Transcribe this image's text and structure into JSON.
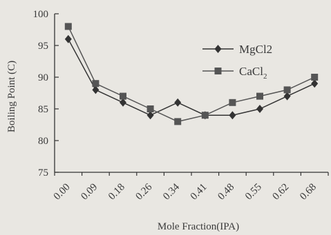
{
  "chart_data": {
    "type": "line",
    "categories": [
      "0.00",
      "0.09",
      "0.18",
      "0.26",
      "0.34",
      "0.41",
      "0.48",
      "0.55",
      "0.62",
      "0.68"
    ],
    "series": [
      {
        "name": "MgCl2",
        "marker": "diamond",
        "values": [
          96,
          88,
          86,
          84,
          86,
          84,
          84,
          85,
          87,
          89
        ],
        "color": "#333333"
      },
      {
        "name": "CaCl2",
        "marker": "square",
        "values": [
          98,
          89,
          87,
          85,
          83,
          84,
          86,
          87,
          88,
          90
        ],
        "color": "#555555"
      }
    ],
    "xlabel": "Mole Fraction(IPA)",
    "ylabel": "Boiling Point (C)",
    "ylim": [
      75,
      100
    ],
    "yticks": [
      75,
      80,
      85,
      90,
      95,
      100
    ],
    "legend": {
      "placement": "top-right",
      "entries": [
        {
          "main": "MgCl2",
          "sub": ""
        },
        {
          "main": "CaCl",
          "sub": "2"
        }
      ]
    },
    "grid": false
  }
}
